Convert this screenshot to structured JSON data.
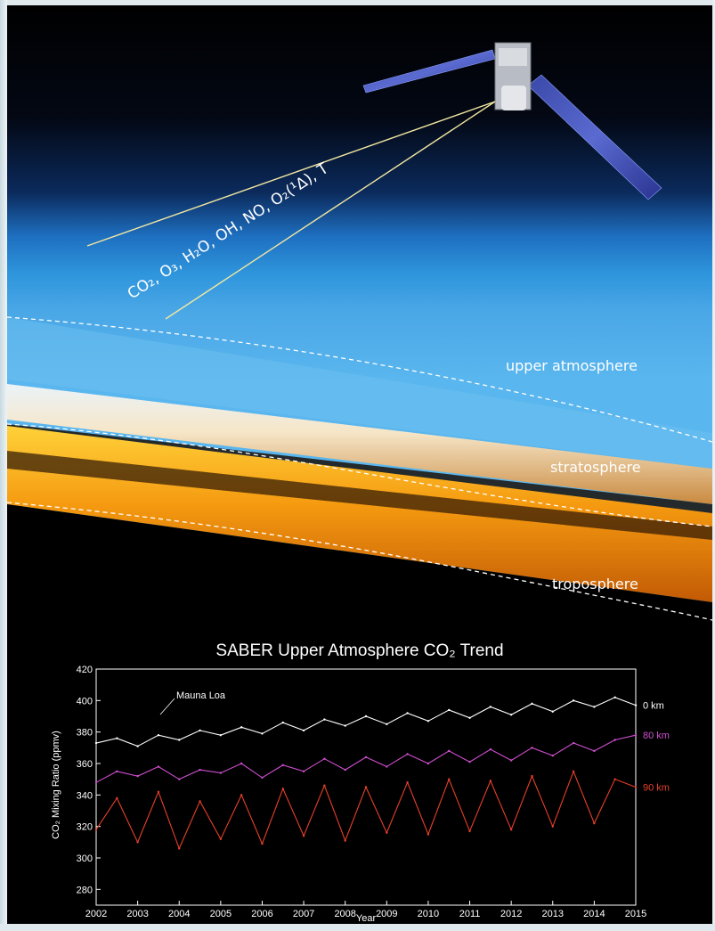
{
  "illustration": {
    "instrument_species_label": "CO₂, O₃, H₂O, OH, NO, O₂(¹Δ), T",
    "layers": [
      "upper atmosphere",
      "stratosphere",
      "troposphere"
    ],
    "satellite_icon": "satellite-icon"
  },
  "colors": {
    "background": "#000000",
    "sky_blue": "#2a8fd6",
    "horizon_orange": "#f5a418",
    "series_0km": "#ffffff",
    "series_80km": "#d04fd0",
    "series_90km": "#e8402a"
  },
  "chart_data": {
    "type": "line",
    "title": "SABER Upper Atmosphere CO₂ Trend",
    "xlabel": "Year",
    "ylabel": "CO₂ Mixing Ratio (ppmv)",
    "xlim": [
      2002,
      2015
    ],
    "ylim": [
      270,
      420
    ],
    "xticks": [
      2002,
      2003,
      2004,
      2005,
      2006,
      2007,
      2008,
      2009,
      2010,
      2011,
      2012,
      2013,
      2014,
      2015
    ],
    "yticks": [
      280,
      300,
      320,
      340,
      360,
      380,
      400,
      420
    ],
    "annotation": "Mauna Loa",
    "grid": false,
    "series": [
      {
        "name": "0 km",
        "x": [
          2002.0,
          2002.5,
          2003.0,
          2003.5,
          2004.0,
          2004.5,
          2005.0,
          2005.5,
          2006.0,
          2006.5,
          2007.0,
          2007.5,
          2008.0,
          2008.5,
          2009.0,
          2009.5,
          2010.0,
          2010.5,
          2011.0,
          2011.5,
          2012.0,
          2012.5,
          2013.0,
          2013.5,
          2014.0,
          2014.5,
          2015.0
        ],
        "values": [
          373,
          376,
          371,
          378,
          375,
          381,
          378,
          383,
          379,
          386,
          381,
          388,
          384,
          390,
          385,
          392,
          387,
          394,
          389,
          396,
          391,
          398,
          393,
          400,
          396,
          402,
          397
        ]
      },
      {
        "name": "80 km",
        "x": [
          2002.0,
          2002.5,
          2003.0,
          2003.5,
          2004.0,
          2004.5,
          2005.0,
          2005.5,
          2006.0,
          2006.5,
          2007.0,
          2007.5,
          2008.0,
          2008.5,
          2009.0,
          2009.5,
          2010.0,
          2010.5,
          2011.0,
          2011.5,
          2012.0,
          2012.5,
          2013.0,
          2013.5,
          2014.0,
          2014.5,
          2015.0
        ],
        "values": [
          348,
          355,
          352,
          358,
          350,
          356,
          354,
          360,
          351,
          359,
          355,
          363,
          356,
          364,
          358,
          366,
          360,
          368,
          361,
          369,
          362,
          370,
          365,
          373,
          368,
          375,
          378
        ]
      },
      {
        "name": "90 km",
        "x": [
          2002.0,
          2002.5,
          2003.0,
          2003.5,
          2004.0,
          2004.5,
          2005.0,
          2005.5,
          2006.0,
          2006.5,
          2007.0,
          2007.5,
          2008.0,
          2008.5,
          2009.0,
          2009.5,
          2010.0,
          2010.5,
          2011.0,
          2011.5,
          2012.0,
          2012.5,
          2013.0,
          2013.5,
          2014.0,
          2014.5,
          2015.0
        ],
        "values": [
          318,
          338,
          310,
          342,
          306,
          336,
          312,
          340,
          309,
          344,
          314,
          346,
          311,
          345,
          316,
          348,
          315,
          350,
          317,
          349,
          318,
          352,
          320,
          355,
          322,
          350,
          345
        ]
      }
    ]
  }
}
